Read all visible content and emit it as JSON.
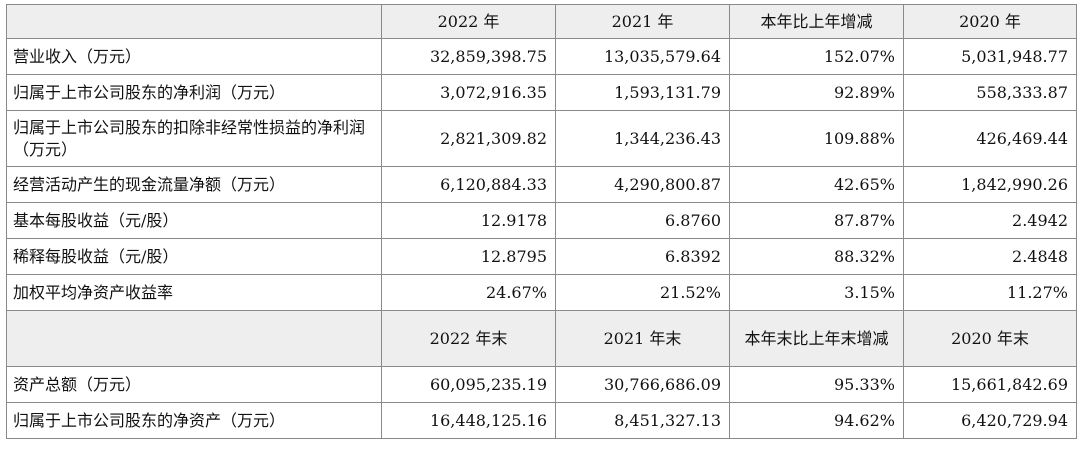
{
  "header_1": [
    "",
    "2022 年",
    "2021 年",
    "本年比上年增减",
    "2020 年"
  ],
  "rows_1": [
    {
      "label": "营业收入（万元）",
      "v2022": "32,859,398.75",
      "v2021": "13,035,579.64",
      "change": "152.07%",
      "v2020": "5,031,948.77"
    },
    {
      "label": "归属于上市公司股东的净利润（万元）",
      "v2022": "3,072,916.35",
      "v2021": "1,593,131.79",
      "change": "92.89%",
      "v2020": "558,333.87"
    },
    {
      "label": "归属于上市公司股东的扣除非经常性损益的净利润（万元）",
      "v2022": "2,821,309.82",
      "v2021": "1,344,236.43",
      "change": "109.88%",
      "v2020": "426,469.44"
    },
    {
      "label": "经营活动产生的现金流量净额（万元）",
      "v2022": "6,120,884.33",
      "v2021": "4,290,800.87",
      "change": "42.65%",
      "v2020": "1,842,990.26"
    },
    {
      "label": "基本每股收益（元/股）",
      "v2022": "12.9178",
      "v2021": "6.8760",
      "change": "87.87%",
      "v2020": "2.4942"
    },
    {
      "label": "稀释每股收益（元/股）",
      "v2022": "12.8795",
      "v2021": "6.8392",
      "change": "88.32%",
      "v2020": "2.4848"
    },
    {
      "label": "加权平均净资产收益率",
      "v2022": "24.67%",
      "v2021": "21.52%",
      "change": "3.15%",
      "v2020": "11.27%"
    }
  ],
  "header_2": [
    "",
    "2022 年末",
    "2021 年末",
    "本年末比上年末增减",
    "2020 年末"
  ],
  "rows_2": [
    {
      "label": "资产总额（万元）",
      "v2022": "60,095,235.19",
      "v2021": "30,766,686.09",
      "change": "95.33%",
      "v2020": "15,661,842.69"
    },
    {
      "label": "归属于上市公司股东的净资产（万元）",
      "v2022": "16,448,125.16",
      "v2021": "8,451,327.13",
      "change": "94.62%",
      "v2020": "6,420,729.94"
    }
  ]
}
